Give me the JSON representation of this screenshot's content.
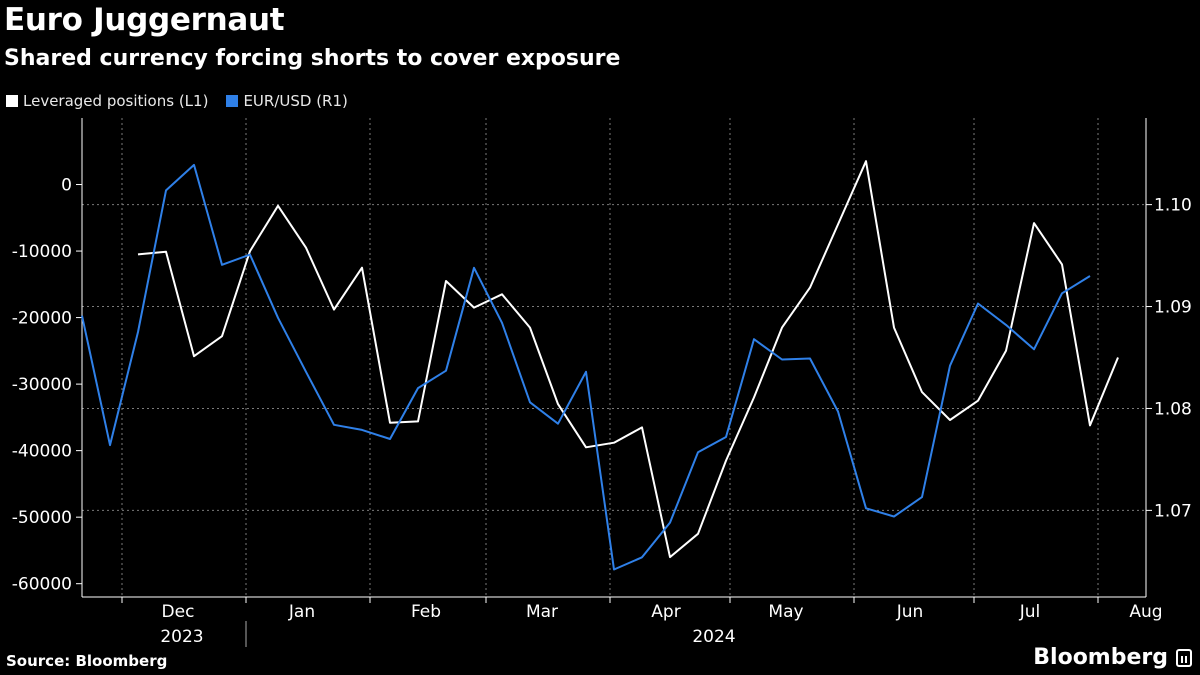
{
  "header": {
    "title": "Euro Juggernaut",
    "subtitle": "Shared currency forcing shorts to cover exposure"
  },
  "footer": {
    "source": "Source: Bloomberg",
    "brand": "Bloomberg"
  },
  "colors": {
    "background": "#000000",
    "leveraged": "#ffffff",
    "eurusd": "#2f80e8",
    "grid": "#7a7a7a"
  },
  "chart_data": {
    "type": "line",
    "legend_position": "top-left",
    "grid": true,
    "x_range": [
      "2023-11-21",
      "2024-08-13"
    ],
    "left_axis": {
      "ylim": [
        -62000,
        10000
      ],
      "ticks": [
        "0",
        "-10000",
        "-20000",
        "-30000",
        "-40000",
        "-50000",
        "-60000"
      ],
      "tick_values": [
        0,
        -10000,
        -20000,
        -30000,
        -40000,
        -50000,
        -60000
      ]
    },
    "right_axis": {
      "ylim": [
        1.0615,
        1.1085
      ],
      "ticks": [
        "1.10",
        "1.09",
        "1.08",
        "1.07"
      ],
      "tick_values": [
        1.1,
        1.09,
        1.08,
        1.07
      ]
    },
    "x_ticks": [
      {
        "label": "Dec",
        "date": "2023-12-15"
      },
      {
        "label": "Jan",
        "date": "2024-01-15"
      },
      {
        "label": "Feb",
        "date": "2024-02-15"
      },
      {
        "label": "Mar",
        "date": "2024-03-15"
      },
      {
        "label": "Apr",
        "date": "2024-04-15"
      },
      {
        "label": "May",
        "date": "2024-05-15"
      },
      {
        "label": "Jun",
        "date": "2024-06-15"
      },
      {
        "label": "Jul",
        "date": "2024-07-15"
      },
      {
        "label": "Aug",
        "date": "2024-08-13"
      }
    ],
    "month_boundaries": [
      "2023-12-01",
      "2024-01-01",
      "2024-02-01",
      "2024-03-01",
      "2024-04-01",
      "2024-05-01",
      "2024-06-01",
      "2024-07-01",
      "2024-08-01"
    ],
    "year_labels": [
      {
        "label": "2023",
        "date": "2023-12-16"
      },
      {
        "label": "2024",
        "date": "2024-04-27"
      }
    ],
    "year_divider": "2024-01-01",
    "series": [
      {
        "name": "Leveraged positions (L1)",
        "axis": "left",
        "color": "#ffffff",
        "points": [
          [
            "2023-12-05",
            -10500
          ],
          [
            "2023-12-12",
            -10100
          ],
          [
            "2023-12-19",
            -25800
          ],
          [
            "2023-12-26",
            -22800
          ],
          [
            "2024-01-02",
            -10000
          ],
          [
            "2024-01-09",
            -3200
          ],
          [
            "2024-01-16",
            -9500
          ],
          [
            "2024-01-23",
            -18800
          ],
          [
            "2024-01-30",
            -12500
          ],
          [
            "2024-02-06",
            -35800
          ],
          [
            "2024-02-13",
            -35600
          ],
          [
            "2024-02-20",
            -14500
          ],
          [
            "2024-02-27",
            -18500
          ],
          [
            "2024-03-05",
            -16500
          ],
          [
            "2024-03-12",
            -21500
          ],
          [
            "2024-03-19",
            -33000
          ],
          [
            "2024-03-26",
            -39500
          ],
          [
            "2024-04-02",
            -38800
          ],
          [
            "2024-04-09",
            -36500
          ],
          [
            "2024-04-16",
            -56000
          ],
          [
            "2024-04-23",
            -52500
          ],
          [
            "2024-04-30",
            -41500
          ],
          [
            "2024-05-07",
            -32000
          ],
          [
            "2024-05-14",
            -21500
          ],
          [
            "2024-05-21",
            -15500
          ],
          [
            "2024-05-28",
            -6000
          ],
          [
            "2024-06-04",
            3500
          ],
          [
            "2024-06-11",
            -21500
          ],
          [
            "2024-06-18",
            -31200
          ],
          [
            "2024-06-25",
            -35400
          ],
          [
            "2024-07-02",
            -32500
          ],
          [
            "2024-07-09",
            -25000
          ],
          [
            "2024-07-16",
            -5800
          ],
          [
            "2024-07-23",
            -12000
          ],
          [
            "2024-07-30",
            -36200
          ],
          [
            "2024-08-06",
            -26000
          ]
        ]
      },
      {
        "name": "EUR/USD (R1)",
        "axis": "right",
        "color": "#2f80e8",
        "points": [
          [
            "2023-11-21",
            1.0891
          ],
          [
            "2023-11-28",
            1.0764
          ],
          [
            "2023-12-05",
            1.0875
          ],
          [
            "2023-12-12",
            1.1014
          ],
          [
            "2023-12-19",
            1.1039
          ],
          [
            "2023-12-26",
            1.0941
          ],
          [
            "2024-01-02",
            1.0951
          ],
          [
            "2024-01-09",
            1.0889
          ],
          [
            "2024-01-16",
            1.0836
          ],
          [
            "2024-01-23",
            1.0784
          ],
          [
            "2024-01-30",
            1.0779
          ],
          [
            "2024-02-06",
            1.077
          ],
          [
            "2024-02-13",
            1.082
          ],
          [
            "2024-02-20",
            1.0837
          ],
          [
            "2024-02-27",
            1.0938
          ],
          [
            "2024-03-05",
            1.0884
          ],
          [
            "2024-03-12",
            1.0806
          ],
          [
            "2024-03-19",
            1.0785
          ],
          [
            "2024-03-26",
            1.0836
          ],
          [
            "2024-04-02",
            1.0642
          ],
          [
            "2024-04-09",
            1.0654
          ],
          [
            "2024-04-16",
            1.0688
          ],
          [
            "2024-04-23",
            1.0757
          ],
          [
            "2024-04-30",
            1.0772
          ],
          [
            "2024-05-07",
            1.0868
          ],
          [
            "2024-05-14",
            1.0848
          ],
          [
            "2024-05-21",
            1.0849
          ],
          [
            "2024-05-28",
            1.0797
          ],
          [
            "2024-06-04",
            1.0702
          ],
          [
            "2024-06-11",
            1.0694
          ],
          [
            "2024-06-18",
            1.0713
          ],
          [
            "2024-06-25",
            1.0842
          ],
          [
            "2024-07-02",
            1.0903
          ],
          [
            "2024-07-09",
            1.0882
          ],
          [
            "2024-07-16",
            1.0858
          ],
          [
            "2024-07-23",
            1.0913
          ],
          [
            "2024-07-30",
            1.093
          ]
        ]
      }
    ]
  }
}
